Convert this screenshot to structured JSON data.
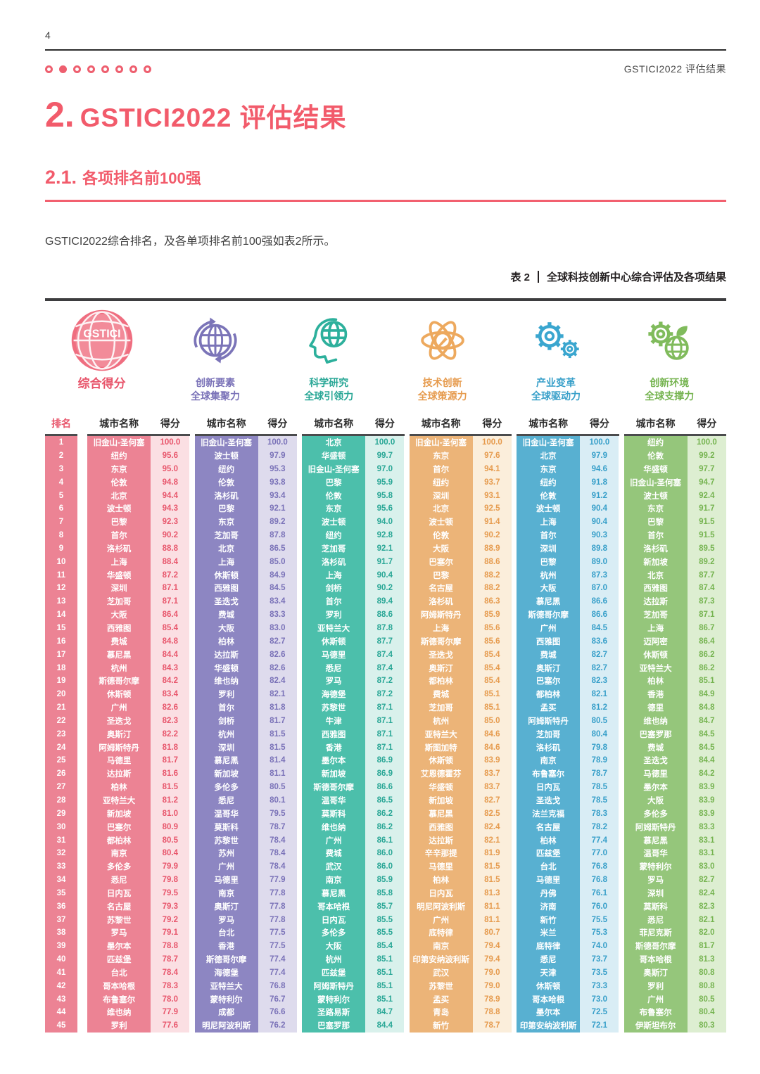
{
  "page": {
    "number": "4",
    "header_right": "GSTICI2022 评估结果",
    "dots": {
      "total": 8,
      "active_index": 1
    }
  },
  "title": {
    "number": "2.",
    "text": "GSTICI2022 评估结果"
  },
  "section": {
    "number": "2.1.",
    "text": "各项排名前100强"
  },
  "paragraph": "GSTICI2022综合排名，及各单项排名前100强如表2所示。",
  "table_caption": {
    "label": "表 2",
    "text": "全球科技创新中心综合评估及各项结果"
  },
  "table": {
    "rank_header": "排名",
    "city_header": "城市名称",
    "score_header": "得分",
    "rank_color": "#ec8394",
    "columns": [
      {
        "id": "composite",
        "label_lines": [
          "综合得分"
        ],
        "icon": "gstici-globe-icon",
        "icon_text": "GSTICI",
        "icon_color": "#ef6e80",
        "color_dark": "#ec8394",
        "color_light": "#fbdfe3",
        "accent": "#e8566c",
        "cities": [
          "旧金山-圣何塞",
          "纽约",
          "东京",
          "伦敦",
          "北京",
          "波士顿",
          "巴黎",
          "首尔",
          "洛杉矶",
          "上海",
          "华盛顿",
          "深圳",
          "芝加哥",
          "大阪",
          "西雅图",
          "费城",
          "慕尼黑",
          "杭州",
          "斯德哥尔摩",
          "休斯顿",
          "广州",
          "圣迭戈",
          "奥斯汀",
          "阿姆斯特丹",
          "马德里",
          "达拉斯",
          "柏林",
          "亚特兰大",
          "新加坡",
          "巴塞尔",
          "都柏林",
          "南京",
          "多伦多",
          "悉尼",
          "日内瓦",
          "名古屋",
          "苏黎世",
          "罗马",
          "墨尔本",
          "匹兹堡",
          "台北",
          "哥本哈根",
          "布鲁塞尔",
          "维也纳",
          "罗利"
        ],
        "scores": [
          "100.0",
          "95.6",
          "95.0",
          "94.8",
          "94.4",
          "94.3",
          "92.3",
          "90.2",
          "88.8",
          "88.4",
          "87.2",
          "87.1",
          "87.1",
          "86.4",
          "85.4",
          "84.8",
          "84.4",
          "84.3",
          "84.2",
          "83.4",
          "82.6",
          "82.3",
          "82.2",
          "81.8",
          "81.7",
          "81.6",
          "81.5",
          "81.2",
          "81.0",
          "80.9",
          "80.5",
          "80.4",
          "79.9",
          "79.8",
          "79.5",
          "79.3",
          "79.2",
          "79.1",
          "78.8",
          "78.7",
          "78.4",
          "78.3",
          "78.0",
          "77.9",
          "77.6"
        ]
      },
      {
        "id": "innovation-factors",
        "label_lines": [
          "创新要素",
          "全球集聚力"
        ],
        "icon": "globe-arrows-icon",
        "icon_color": "#7b74b8",
        "color_dark": "#8d86c2",
        "color_light": "#dedbed",
        "accent": "#7a72b8",
        "cities": [
          "旧金山-圣何塞",
          "波士顿",
          "纽约",
          "伦敦",
          "洛杉矶",
          "巴黎",
          "东京",
          "芝加哥",
          "北京",
          "上海",
          "休斯顿",
          "西雅图",
          "圣迭戈",
          "费城",
          "大阪",
          "柏林",
          "达拉斯",
          "华盛顿",
          "维也纳",
          "罗利",
          "首尔",
          "剑桥",
          "杭州",
          "深圳",
          "慕尼黑",
          "新加坡",
          "多伦多",
          "悉尼",
          "温哥华",
          "莫斯科",
          "苏黎世",
          "苏州",
          "广州",
          "马德里",
          "南京",
          "奥斯汀",
          "罗马",
          "台北",
          "香港",
          "斯德哥尔摩",
          "海德堡",
          "亚特兰大",
          "蒙特利尔",
          "成都",
          "明尼阿波利斯"
        ],
        "scores": [
          "100.0",
          "97.9",
          "95.3",
          "93.8",
          "93.4",
          "92.1",
          "89.2",
          "87.8",
          "86.5",
          "85.0",
          "84.9",
          "84.5",
          "83.4",
          "83.3",
          "83.0",
          "82.7",
          "82.6",
          "82.6",
          "82.4",
          "82.1",
          "81.8",
          "81.7",
          "81.5",
          "81.5",
          "81.4",
          "81.1",
          "80.5",
          "80.1",
          "79.5",
          "78.7",
          "78.4",
          "78.4",
          "78.4",
          "77.9",
          "77.8",
          "77.8",
          "77.8",
          "77.5",
          "77.5",
          "77.4",
          "77.4",
          "76.8",
          "76.7",
          "76.6",
          "76.2"
        ]
      },
      {
        "id": "scientific-research",
        "label_lines": [
          "科学研究",
          "全球引领力"
        ],
        "icon": "head-globe-icon",
        "icon_color": "#2db09c",
        "color_dark": "#4cbfab",
        "color_light": "#d9f1ec",
        "accent": "#29a796",
        "cities": [
          "北京",
          "华盛顿",
          "旧金山-圣何塞",
          "巴黎",
          "伦敦",
          "东京",
          "波士顿",
          "纽约",
          "芝加哥",
          "洛杉矶",
          "上海",
          "剑桥",
          "首尔",
          "罗利",
          "亚特兰大",
          "休斯顿",
          "马德里",
          "悉尼",
          "罗马",
          "海德堡",
          "苏黎世",
          "牛津",
          "西雅图",
          "香港",
          "墨尔本",
          "新加坡",
          "斯德哥尔摩",
          "温哥华",
          "莫斯科",
          "维也纳",
          "广州",
          "费城",
          "武汉",
          "南京",
          "慕尼黑",
          "哥本哈根",
          "日内瓦",
          "多伦多",
          "大阪",
          "杭州",
          "匹兹堡",
          "阿姆斯特丹",
          "蒙特利尔",
          "圣路易斯",
          "巴塞罗那"
        ],
        "scores": [
          "100.0",
          "99.7",
          "97.0",
          "95.9",
          "95.8",
          "95.6",
          "94.0",
          "92.8",
          "92.1",
          "91.7",
          "90.4",
          "90.2",
          "89.4",
          "88.6",
          "87.8",
          "87.7",
          "87.4",
          "87.4",
          "87.2",
          "87.2",
          "87.1",
          "87.1",
          "87.1",
          "87.1",
          "86.9",
          "86.9",
          "86.6",
          "86.5",
          "86.2",
          "86.2",
          "86.1",
          "86.0",
          "86.0",
          "85.9",
          "85.8",
          "85.7",
          "85.5",
          "85.5",
          "85.4",
          "85.1",
          "85.1",
          "85.1",
          "85.1",
          "84.7",
          "84.4"
        ]
      },
      {
        "id": "technological-innovation",
        "label_lines": [
          "技术创新",
          "全球策源力"
        ],
        "icon": "atom-pencil-icon",
        "icon_color": "#eda95e",
        "color_dark": "#ecb478",
        "color_light": "#fbeedb",
        "accent": "#e69b4e",
        "cities": [
          "旧金山-圣何塞",
          "东京",
          "首尔",
          "纽约",
          "深圳",
          "北京",
          "波士顿",
          "伦敦",
          "大阪",
          "巴塞尔",
          "巴黎",
          "名古屋",
          "洛杉矶",
          "阿姆斯特丹",
          "上海",
          "斯德哥尔摩",
          "圣迭戈",
          "奥斯汀",
          "都柏林",
          "费城",
          "芝加哥",
          "杭州",
          "亚特兰大",
          "斯图加特",
          "休斯顿",
          "艾恩德霍芬",
          "华盛顿",
          "新加坡",
          "慕尼黑",
          "西雅图",
          "达拉斯",
          "辛辛那提",
          "马德里",
          "柏林",
          "日内瓦",
          "明尼阿波利斯",
          "广州",
          "底特律",
          "南京",
          "印第安纳波利斯",
          "武汉",
          "苏黎世",
          "孟买",
          "青岛",
          "新竹"
        ],
        "scores": [
          "100.0",
          "97.6",
          "94.1",
          "93.7",
          "93.1",
          "92.5",
          "91.4",
          "90.2",
          "88.9",
          "88.6",
          "88.2",
          "88.2",
          "86.3",
          "85.9",
          "85.6",
          "85.6",
          "85.4",
          "85.4",
          "85.4",
          "85.1",
          "85.1",
          "85.0",
          "84.6",
          "84.6",
          "83.9",
          "83.7",
          "83.7",
          "82.7",
          "82.5",
          "82.4",
          "82.1",
          "81.9",
          "81.5",
          "81.5",
          "81.3",
          "81.1",
          "81.1",
          "80.7",
          "79.4",
          "79.4",
          "79.0",
          "79.0",
          "78.9",
          "78.8",
          "78.7"
        ]
      },
      {
        "id": "industrial-transformation",
        "label_lines": [
          "产业变革",
          "全球驱动力"
        ],
        "icon": "gears-icon",
        "icon_color": "#3aa6cf",
        "color_dark": "#58b0d1",
        "color_light": "#d9edf5",
        "accent": "#379fc9",
        "cities": [
          "旧金山-圣何塞",
          "北京",
          "东京",
          "纽约",
          "伦敦",
          "波士顿",
          "上海",
          "首尔",
          "深圳",
          "巴黎",
          "杭州",
          "大阪",
          "慕尼黑",
          "斯德哥尔摩",
          "广州",
          "西雅图",
          "费城",
          "奥斯汀",
          "巴塞尔",
          "都柏林",
          "孟买",
          "阿姆斯特丹",
          "芝加哥",
          "洛杉矶",
          "南京",
          "布鲁塞尔",
          "日内瓦",
          "圣迭戈",
          "法兰克福",
          "名古屋",
          "柏林",
          "匹兹堡",
          "台北",
          "马德里",
          "丹佛",
          "济南",
          "新竹",
          "米兰",
          "底特律",
          "悉尼",
          "天津",
          "休斯顿",
          "哥本哈根",
          "墨尔本",
          "印第安纳波利斯"
        ],
        "scores": [
          "100.0",
          "97.9",
          "94.6",
          "91.8",
          "91.2",
          "90.4",
          "90.4",
          "90.3",
          "89.8",
          "89.0",
          "87.3",
          "87.0",
          "86.6",
          "86.6",
          "84.5",
          "83.6",
          "82.7",
          "82.7",
          "82.3",
          "82.1",
          "81.2",
          "80.5",
          "80.4",
          "79.8",
          "78.9",
          "78.7",
          "78.5",
          "78.5",
          "78.3",
          "78.2",
          "77.4",
          "77.0",
          "76.8",
          "76.8",
          "76.1",
          "76.0",
          "75.5",
          "75.3",
          "74.0",
          "73.7",
          "73.5",
          "73.3",
          "73.0",
          "72.5",
          "72.1"
        ]
      },
      {
        "id": "innovation-environment",
        "label_lines": [
          "创新环境",
          "全球支撑力"
        ],
        "icon": "gear-earth-icon",
        "icon_color": "#80bb5c",
        "color_dark": "#95c67b",
        "color_light": "#ddeed1",
        "accent": "#76b451",
        "cities": [
          "纽约",
          "伦敦",
          "华盛顿",
          "旧金山-圣何塞",
          "波士顿",
          "东京",
          "巴黎",
          "首尔",
          "洛杉矶",
          "新加坡",
          "北京",
          "西雅图",
          "达拉斯",
          "芝加哥",
          "上海",
          "迈阿密",
          "休斯顿",
          "亚特兰大",
          "柏林",
          "香港",
          "德里",
          "维也纳",
          "巴塞罗那",
          "费城",
          "圣迭戈",
          "马德里",
          "墨尔本",
          "大阪",
          "多伦多",
          "阿姆斯特丹",
          "慕尼黑",
          "温哥华",
          "蒙特利尔",
          "罗马",
          "深圳",
          "莫斯科",
          "悉尼",
          "菲尼克斯",
          "斯德哥尔摩",
          "哥本哈根",
          "奥斯汀",
          "罗利",
          "广州",
          "布鲁塞尔",
          "伊斯坦布尔"
        ],
        "scores": [
          "100.0",
          "99.2",
          "97.7",
          "94.7",
          "92.4",
          "91.7",
          "91.5",
          "91.5",
          "89.5",
          "89.2",
          "87.7",
          "87.4",
          "87.3",
          "87.1",
          "86.7",
          "86.4",
          "86.2",
          "86.2",
          "85.1",
          "84.9",
          "84.8",
          "84.7",
          "84.5",
          "84.5",
          "84.4",
          "84.2",
          "83.9",
          "83.9",
          "83.9",
          "83.3",
          "83.1",
          "83.1",
          "83.0",
          "82.7",
          "82.4",
          "82.3",
          "82.1",
          "82.0",
          "81.7",
          "81.3",
          "80.8",
          "80.8",
          "80.5",
          "80.4",
          "80.3"
        ]
      }
    ]
  }
}
